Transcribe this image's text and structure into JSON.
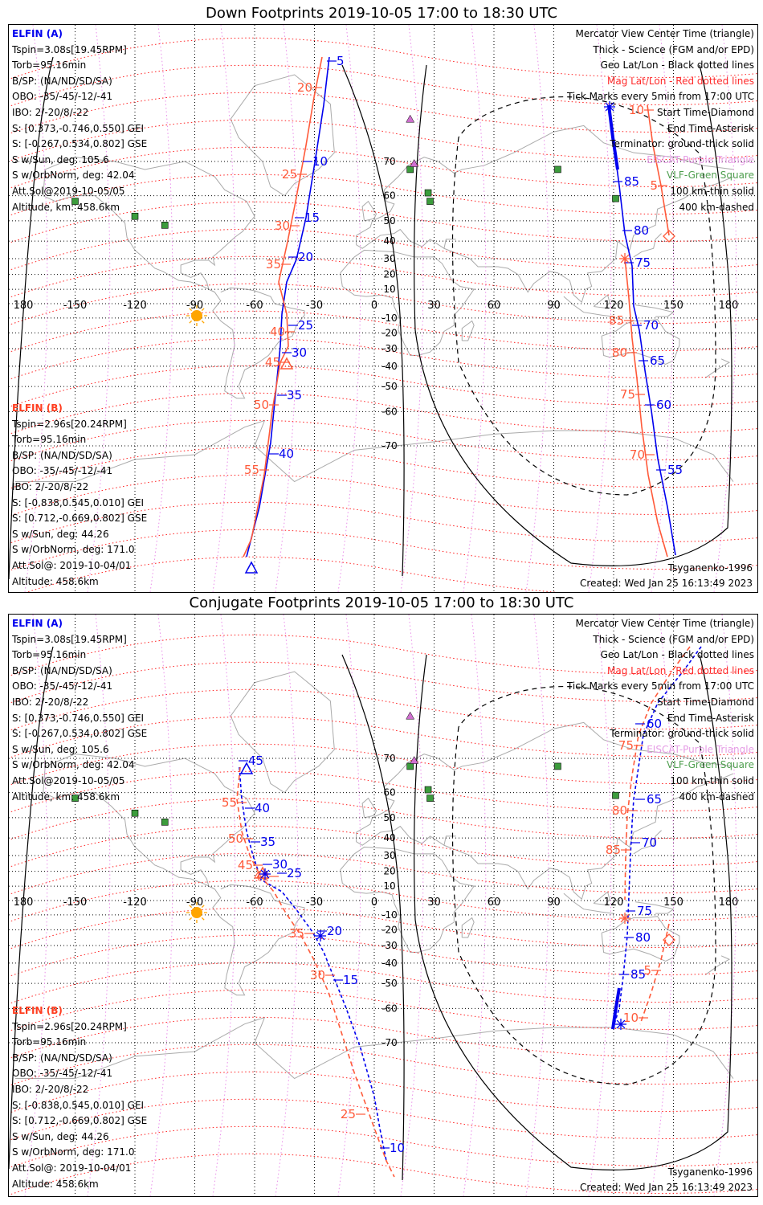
{
  "panels": [
    {
      "id": "down",
      "title": "Down Footprints 2019-10-05 17:00 to 18:30 UTC",
      "elfin_a": {
        "label": "ELFIN (A)",
        "lines": [
          "Tspin=3.08s[19.45RPM]",
          "Torb=95.16min",
          "B/SP: (NA/ND/SD/SA)",
          "OBO: -35/-45/-12/-41",
          "IBO: 2/-20/8/-22",
          "S: [0.373,-0.746,0.550] GEI",
          "S: [-0.267,0.534,0.802] GSE",
          "S w/Sun, deg: 105.6",
          "S w/OrbNorm, deg: 42.04",
          "Att.Sol@2019-10-05/05",
          "Altitude, km: 458.6km"
        ]
      },
      "elfin_b": {
        "label": "ELFIN (B)",
        "lines": [
          "Tspin=2.96s[20.24RPM]",
          "Torb=95.16min",
          "B/SP: (NA/ND/SD/SA)",
          "OBO: -35/-45/-12/-41",
          "IBO: 2/-20/8/-22",
          "S: [-0.838,0.545,0.010] GEI",
          "S: [0.712,-0.669,0.802] GSE",
          "S w/Sun, deg: 44.26",
          "S w/OrbNorm, deg: 171.0",
          "Att.Sol@: 2019-10-04/01",
          "Altitude: 458.6km"
        ]
      },
      "track_labels": {
        "a_upper": [
          "5",
          "10",
          "15",
          "20",
          "25",
          "30",
          "35",
          "40"
        ],
        "b_upper": [
          "20",
          "25",
          "30",
          "35",
          "40",
          "45",
          "50",
          "55"
        ],
        "a_right": [
          "85",
          "80",
          "75",
          "70",
          "65",
          "60",
          "55"
        ],
        "b_right": [
          "10",
          "5",
          "85",
          "80",
          "75",
          "70"
        ]
      },
      "model": "Tsyganenko-1996",
      "created": "Created: Wed Jan 25 16:13:49 2023"
    },
    {
      "id": "conjugate",
      "title": "Conjugate Footprints 2019-10-05 17:00 to 18:30 UTC",
      "elfin_a": {
        "label": "ELFIN (A)",
        "lines": [
          "Tspin=3.08s[19.45RPM]",
          "Torb=95.16min",
          "B/SP: (NA/ND/SD/SA)",
          "OBO: -35/-45/-12/-41",
          "IBO: 2/-20/8/-22",
          "S: [0.373,-0.746,0.550] GEI",
          "S: [-0.267,0.534,0.802] GSE",
          "S w/Sun, deg: 105.6",
          "S w/OrbNorm, deg: 42.04",
          "Att.Sol@2019-10-05/05",
          "Altitude, km: 458.6km"
        ]
      },
      "elfin_b": {
        "label": "ELFIN (B)",
        "lines": [
          "Tspin=2.96s[20.24RPM]",
          "Torb=95.16min",
          "B/SP: (NA/ND/SD/SA)",
          "OBO: -35/-45/-12/-41",
          "IBO: 2/-20/8/-22",
          "S: [-0.838,0.545,0.010] GEI",
          "S: [0.712,-0.669,0.802] GSE",
          "S w/Sun, deg: 44.26",
          "S w/OrbNorm, deg: 171.0",
          "Att.Sol@: 2019-10-04/01",
          "Altitude: 458.6km"
        ]
      },
      "track_labels": {
        "a_upper": [
          "45",
          "40",
          "35",
          "30",
          "25",
          "20",
          "15",
          "10"
        ],
        "b_upper": [
          "55",
          "50",
          "45",
          "40",
          "35",
          "30",
          "25"
        ],
        "a_right": [
          "60",
          "65",
          "70",
          "75",
          "80",
          "85"
        ],
        "b_right": [
          "75",
          "80",
          "85",
          "5",
          "10"
        ]
      },
      "model": "Tsyganenko-1996",
      "created": "Created: Wed Jan 25 16:13:49 2023"
    }
  ],
  "legend": {
    "lines": [
      {
        "text": "Mercator View Center Time (triangle)",
        "color": "#000000"
      },
      {
        "text": "Thick - Science (FGM and/or EPD)",
        "color": "#000000"
      },
      {
        "text": "Geo Lat/Lon - Black dotted lines",
        "color": "#000000"
      },
      {
        "text": "Mag Lat/Lon - Red dotted lines",
        "color": "#ff2a2a"
      },
      {
        "text": "Tick Marks every 5min from 17:00 UTC",
        "color": "#000000"
      },
      {
        "text": "Start Time-Diamond",
        "color": "#000000"
      },
      {
        "text": "End Time-Asterisk",
        "color": "#000000"
      },
      {
        "text": "Terminator: ground-thick solid",
        "color": "#000000"
      },
      {
        "text": "EISCAT-Purple Triangle",
        "color": "#e59ce5"
      },
      {
        "text": "VLF-Green Square",
        "color": "#4f9f4f"
      },
      {
        "text": "100 km-thin solid",
        "color": "#000000"
      },
      {
        "text": "400 km-dashed",
        "color": "#000000"
      }
    ]
  },
  "map": {
    "longitude_ticks": [
      "180",
      "-150",
      "-120",
      "-90",
      "-60",
      "-30",
      "0",
      "30",
      "60",
      "90",
      "120",
      "150",
      "180"
    ],
    "latitude_ticks": [
      "70",
      "60",
      "50",
      "40",
      "30",
      "20",
      "10",
      "-10",
      "-20",
      "-30",
      "-40",
      "-50",
      "-60",
      "-70"
    ],
    "colors": {
      "elfin_a": "#0000ee",
      "elfin_b": "#ff5a3a",
      "mag_grid": "#ff2020",
      "geo_grid": "#000000",
      "eiscat": "#d070d0",
      "vlf": "#3c9c3c",
      "sun": "#ffa500",
      "coast": "#aaaaaa"
    }
  }
}
